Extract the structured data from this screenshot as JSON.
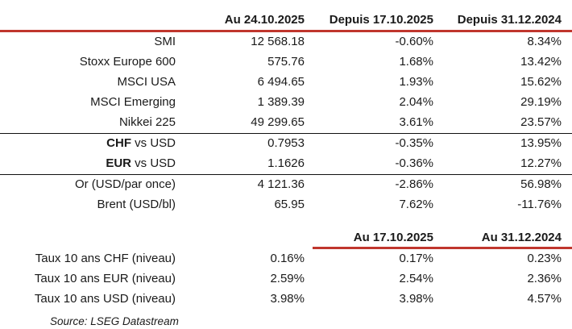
{
  "colors": {
    "accent_red": "#c0362d",
    "separator_black": "#111111",
    "background": "#ffffff"
  },
  "header_row1": {
    "date_label": "Au 24.10.2025",
    "week_label": "Depuis 17.10.2025",
    "ytd_label": "Depuis 31.12.2024"
  },
  "market_rows": [
    {
      "label_bold": "",
      "label_rest": "SMI",
      "v1": "12 568.18",
      "v2": "-0.60%",
      "v3": "8.34%"
    },
    {
      "label_bold": "",
      "label_rest": "Stoxx Europe 600",
      "v1": "575.76",
      "v2": "1.68%",
      "v3": "13.42%"
    },
    {
      "label_bold": "",
      "label_rest": "MSCI USA",
      "v1": "6 494.65",
      "v2": "1.93%",
      "v3": "15.62%"
    },
    {
      "label_bold": "",
      "label_rest": "MSCI Emerging",
      "v1": "1 389.39",
      "v2": "2.04%",
      "v3": "29.19%"
    },
    {
      "label_bold": "",
      "label_rest": "Nikkei 225",
      "v1": "49 299.65",
      "v2": "3.61%",
      "v3": "23.57%"
    },
    {
      "label_bold": "CHF",
      "label_rest": " vs USD",
      "v1": "0.7953",
      "v2": "-0.35%",
      "v3": "13.95%"
    },
    {
      "label_bold": "EUR",
      "label_rest": " vs USD",
      "v1": "1.1626",
      "v2": "-0.36%",
      "v3": "12.27%"
    },
    {
      "label_bold": "",
      "label_rest": "Or (USD/par once)",
      "v1": "4 121.36",
      "v2": "-2.86%",
      "v3": "56.98%"
    },
    {
      "label_bold": "",
      "label_rest": "Brent (USD/bl)",
      "v1": "65.95",
      "v2": "7.62%",
      "v3": "-11.76%"
    }
  ],
  "header_row2": {
    "week_label": "Au 17.10.2025",
    "ytd_label": "Au 31.12.2024"
  },
  "rate_rows": [
    {
      "label": "Taux 10 ans CHF (niveau)",
      "v1": "0.16%",
      "v2": "0.17%",
      "v3": "0.23%"
    },
    {
      "label": "Taux 10 ans EUR (niveau)",
      "v1": "2.59%",
      "v2": "2.54%",
      "v3": "2.36%"
    },
    {
      "label": "Taux 10 ans USD (niveau)",
      "v1": "3.98%",
      "v2": "3.98%",
      "v3": "4.57%"
    }
  ],
  "source_note": "Source: LSEG Datastream",
  "chart_data": {
    "type": "table",
    "title": "",
    "columns": [
      "",
      "Au 24.10.2025",
      "Depuis 17.10.2025",
      "Depuis 31.12.2024"
    ],
    "rows": [
      [
        "SMI",
        "12 568.18",
        "-0.60%",
        "8.34%"
      ],
      [
        "Stoxx Europe 600",
        "575.76",
        "1.68%",
        "13.42%"
      ],
      [
        "MSCI USA",
        "6 494.65",
        "1.93%",
        "15.62%"
      ],
      [
        "MSCI Emerging",
        "1 389.39",
        "2.04%",
        "29.19%"
      ],
      [
        "Nikkei 225",
        "49 299.65",
        "3.61%",
        "23.57%"
      ],
      [
        "CHF vs USD",
        "0.7953",
        "-0.35%",
        "13.95%"
      ],
      [
        "EUR vs USD",
        "1.1626",
        "-0.36%",
        "12.27%"
      ],
      [
        "Or (USD/par once)",
        "4 121.36",
        "-2.86%",
        "56.98%"
      ],
      [
        "Brent (USD/bl)",
        "65.95",
        "7.62%",
        "-11.76%"
      ]
    ],
    "columns_secondary": [
      "",
      "",
      "Au 17.10.2025",
      "Au 31.12.2024"
    ],
    "rows_secondary": [
      [
        "Taux 10 ans CHF (niveau)",
        "0.16%",
        "0.17%",
        "0.23%"
      ],
      [
        "Taux 10 ans EUR (niveau)",
        "2.59%",
        "2.54%",
        "2.36%"
      ],
      [
        "Taux 10 ans USD (niveau)",
        "3.98%",
        "3.98%",
        "4.57%"
      ]
    ],
    "layout": {
      "separators": "red rule under each header row, black rules above FX and commodities groups",
      "alignment": "all columns right-aligned"
    },
    "source": "Source: LSEG Datastream"
  }
}
